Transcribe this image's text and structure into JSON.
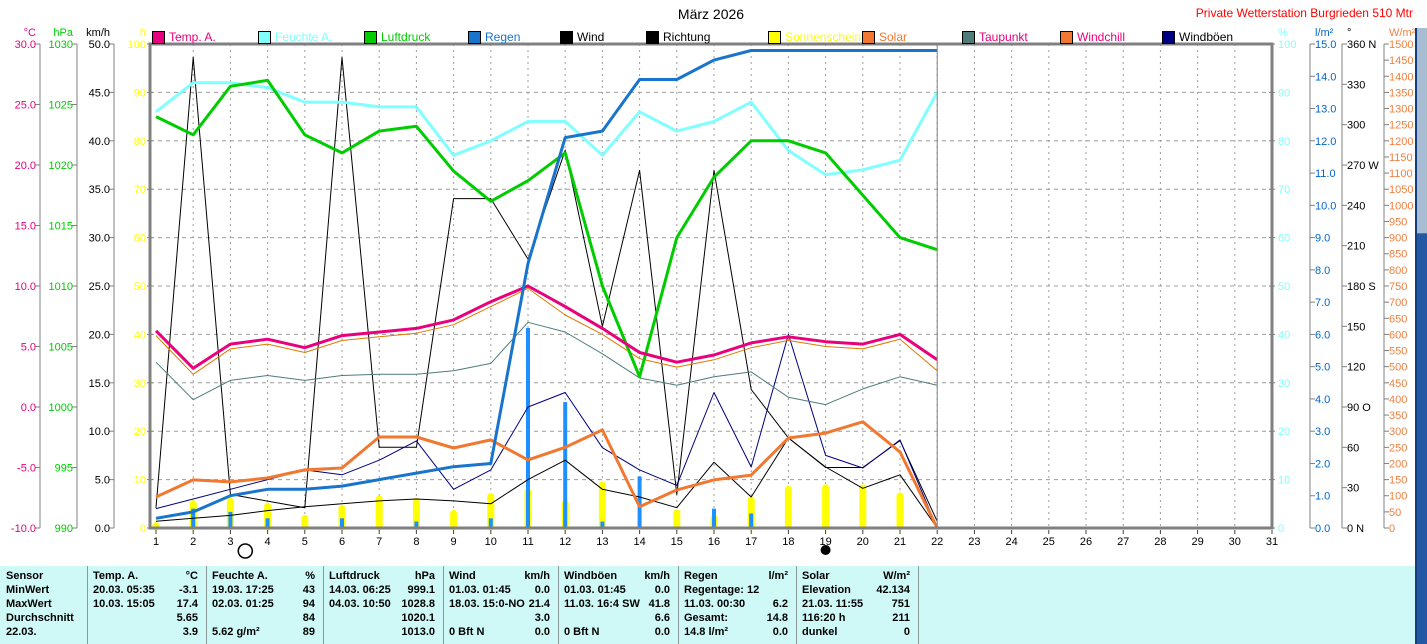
{
  "header": {
    "title": "März 2026",
    "station": "Private Wetterstation Burgrieden 510 Mtr"
  },
  "legend": [
    {
      "label": "Temp. A.",
      "box": "#E8007C",
      "text": "#E8007C"
    },
    {
      "label": "Feuchte A.",
      "box": "#80FFFF",
      "text": "#80FFFF"
    },
    {
      "label": "Luftdruck",
      "box": "#00CC00",
      "text": "#00CC00"
    },
    {
      "label": "Regen",
      "box": "#1874CD",
      "text": "#1874CD"
    },
    {
      "label": "Wind",
      "box": "#000000",
      "text": "#000000"
    },
    {
      "label": "Richtung",
      "box": "#000000",
      "text": "#000000"
    },
    {
      "label": "Sonnenschein",
      "box": "#FFFF00",
      "text": "#FFFF00"
    },
    {
      "label": "Solar",
      "box": "#F07830",
      "text": "#F07830"
    },
    {
      "label": "Taupunkt",
      "box": "#4D7C7A",
      "text": "#E8007C"
    },
    {
      "label": "Windchill",
      "box": "#F07830",
      "text": "#E8007C"
    },
    {
      "label": "Windböen",
      "box": "#000080",
      "text": "#000000"
    }
  ],
  "axes": {
    "left": [
      {
        "name": "temp",
        "header": "°C",
        "color": "#E8007C",
        "ticks": [
          "30.0",
          "25.0",
          "20.0",
          "15.0",
          "10.0",
          "5.0",
          "0.0",
          "-5.0",
          "-10.0"
        ]
      },
      {
        "name": "hpa",
        "header": "hPa",
        "color": "#00CC00",
        "ticks": [
          "1030",
          "1025",
          "1020",
          "1015",
          "1010",
          "1005",
          "1000",
          "995",
          "990"
        ]
      },
      {
        "name": "kmh",
        "header": "km/h",
        "color": "#000000",
        "ticks": [
          "50.0",
          "45.0",
          "40.0",
          "35.0",
          "30.0",
          "25.0",
          "20.0",
          "15.0",
          "10.0",
          "5.0",
          "0.0"
        ]
      },
      {
        "name": "h",
        "header": "h",
        "color": "#FFFF00",
        "ticks": [
          "100",
          "90",
          "80",
          "70",
          "60",
          "50",
          "40",
          "30",
          "20",
          "10",
          "0"
        ]
      }
    ],
    "right": [
      {
        "name": "pct",
        "header": "%",
        "color": "#80FFFF",
        "ticks": [
          "100",
          "90",
          "80",
          "70",
          "60",
          "50",
          "40",
          "30",
          "20",
          "10",
          "0"
        ]
      },
      {
        "name": "lm2",
        "header": "l/m²",
        "color": "#0066CC",
        "ticks": [
          "15.0",
          "14.0",
          "13.0",
          "12.0",
          "11.0",
          "10.0",
          "9.0",
          "8.0",
          "7.0",
          "6.0",
          "5.0",
          "4.0",
          "3.0",
          "2.0",
          "1.0",
          "0.0"
        ]
      },
      {
        "name": "deg",
        "header": "°",
        "color": "#000000",
        "ticks": [
          "360 N",
          "330",
          "300",
          "270 W",
          "240",
          "210",
          "180 S",
          "150",
          "120",
          "90 O",
          "60",
          "30",
          "0 N"
        ]
      },
      {
        "name": "wm2",
        "header": "W/m²",
        "color": "#F08040",
        "ticks": [
          "1500",
          "1450",
          "1400",
          "1350",
          "1300",
          "1250",
          "1200",
          "1150",
          "1100",
          "1050",
          "1000",
          "950",
          "900",
          "850",
          "800",
          "750",
          "700",
          "650",
          "600",
          "550",
          "500",
          "450",
          "400",
          "350",
          "300",
          "250",
          "200",
          "150",
          "100",
          "50",
          "0"
        ]
      }
    ]
  },
  "chart_data": {
    "type": "line",
    "title": "März 2026",
    "x_days": [
      1,
      2,
      3,
      4,
      5,
      6,
      7,
      8,
      9,
      10,
      11,
      12,
      13,
      14,
      15,
      16,
      17,
      18,
      19,
      20,
      21,
      22,
      23,
      24,
      25,
      26,
      27,
      28,
      29,
      30,
      31
    ],
    "data_end_day": 22,
    "axis_ranges": {
      "temp": {
        "min": -10,
        "max": 30
      },
      "hpa": {
        "min": 990,
        "max": 1030
      },
      "kmh": {
        "min": 0,
        "max": 50
      },
      "pct": {
        "min": 0,
        "max": 100
      },
      "lm2": {
        "min": 0,
        "max": 15
      },
      "deg": {
        "min": 0,
        "max": 360
      },
      "wm2": {
        "min": 0,
        "max": 1500
      }
    },
    "series": [
      {
        "name": "Temp. A.",
        "axis": "temp",
        "unit": "°C",
        "color": "#E8007C",
        "width": 3,
        "values": [
          6.3,
          3.2,
          5.2,
          5.6,
          4.9,
          5.9,
          6.2,
          6.5,
          7.2,
          8.7,
          10.0,
          8.3,
          6.5,
          4.5,
          3.7,
          4.3,
          5.3,
          5.8,
          5.4,
          5.2,
          6.0,
          3.9
        ]
      },
      {
        "name": "Feuchte A.",
        "axis": "pct",
        "unit": "%",
        "color": "#80FFFF",
        "width": 3,
        "values": [
          86,
          92,
          92,
          91,
          88,
          88,
          87,
          87,
          77,
          80,
          84,
          84,
          77,
          86,
          82,
          84,
          88,
          78,
          73,
          74,
          76,
          90
        ]
      },
      {
        "name": "Luftdruck",
        "axis": "hpa",
        "unit": "hPa",
        "color": "#00CC00",
        "width": 3,
        "values": [
          1024,
          1022.5,
          1026.5,
          1027,
          1022.5,
          1021,
          1022.8,
          1023.2,
          1019.5,
          1017,
          1018.7,
          1021,
          1010,
          1002.5,
          1014,
          1019,
          1022,
          1022,
          1021,
          1017.5,
          1014,
          1013
        ]
      },
      {
        "name": "Regen",
        "axis": "lm2",
        "unit": "l/m²",
        "color": "#1874CD",
        "width": 3,
        "values": [
          0.3,
          0.5,
          1.0,
          1.2,
          1.2,
          1.3,
          1.5,
          1.7,
          1.9,
          2.0,
          8.2,
          12.1,
          12.3,
          13.9,
          13.9,
          14.5,
          14.8,
          14.8,
          14.8,
          14.8,
          14.8,
          14.8
        ]
      },
      {
        "name": "Wind",
        "axis": "kmh",
        "unit": "km/h",
        "color": "#000000",
        "width": 1,
        "values": [
          0.7,
          1.0,
          1.3,
          1.8,
          2.2,
          2.5,
          2.8,
          3.0,
          2.8,
          2.5,
          5.0,
          7.0,
          4.0,
          3.2,
          2.1,
          6.8,
          3.2,
          9.3,
          6.3,
          4.1,
          5.5,
          0.0
        ]
      },
      {
        "name": "Richtung",
        "axis": "deg",
        "unit": "°",
        "color": "#000000",
        "width": 1,
        "values": [
          15,
          350,
          25,
          20,
          15,
          350,
          60,
          60,
          245,
          245,
          200,
          281,
          150,
          266,
          25,
          266,
          103,
          67,
          45,
          45,
          65,
          5
        ]
      },
      {
        "name": "Sonnenschein",
        "axis": "pct",
        "unit": "h",
        "color": "#FFFF00",
        "width": 7,
        "style": "bar",
        "values": [
          0.5,
          5,
          5.5,
          4.5,
          2,
          4,
          6,
          5.5,
          3,
          6.5,
          7.5,
          5,
          8.9,
          0,
          3.1,
          2,
          5.8,
          8,
          8.3,
          8.3,
          6.6,
          0
        ]
      },
      {
        "name": "Solar",
        "axis": "wm2",
        "unit": "W/m²",
        "color": "#F07830",
        "width": 3,
        "values": [
          96,
          149,
          143,
          155,
          180,
          186,
          282,
          282,
          248,
          273,
          211,
          250,
          304,
          66,
          118,
          149,
          164,
          279,
          294,
          329,
          236,
          0
        ]
      },
      {
        "name": "Taupunkt",
        "axis": "temp",
        "unit": "°C",
        "color": "#4D7C7A",
        "width": 1,
        "values": [
          3.7,
          0.6,
          2.2,
          2.6,
          2.2,
          2.6,
          2.7,
          2.7,
          3.0,
          3.6,
          7.0,
          6.2,
          4.4,
          2.4,
          1.8,
          2.5,
          2.9,
          0.8,
          0.2,
          1.5,
          2.5,
          1.8
        ]
      },
      {
        "name": "Windchill",
        "axis": "temp",
        "unit": "°C",
        "color": "#E07800",
        "width": 1,
        "values": [
          5.9,
          2.7,
          4.8,
          5.2,
          4.5,
          5.5,
          5.8,
          6.1,
          6.8,
          8.3,
          9.8,
          7.6,
          6.0,
          4.0,
          3.3,
          3.9,
          4.9,
          5.5,
          5.0,
          4.8,
          5.6,
          3.0
        ]
      },
      {
        "name": "Windböen",
        "axis": "kmh",
        "unit": "km/h",
        "color": "#000080",
        "width": 1,
        "values": [
          2,
          3,
          4,
          5,
          6,
          5.5,
          7,
          9,
          4,
          6,
          12.5,
          14,
          8.3,
          6,
          4.4,
          14,
          6.3,
          20,
          7.5,
          6.2,
          9.1,
          0
        ]
      },
      {
        "name": "Regen Tag",
        "axis": "lm2",
        "unit": "l/m²",
        "color": "#1E90FF",
        "width": 4,
        "style": "bar",
        "values": [
          0,
          0.6,
          0.5,
          0.3,
          0,
          0.3,
          0,
          0.2,
          0,
          0.3,
          6.2,
          3.9,
          0.2,
          1.6,
          0,
          0.6,
          0.45,
          0,
          0,
          0,
          0,
          0
        ]
      }
    ],
    "markers": {
      "full_moon_day": 3.4,
      "new_moon_day": 19
    }
  },
  "table": {
    "row_labels": [
      "Sensor",
      "MinWert",
      "MaxWert",
      "Durchschnitt",
      "22.03."
    ],
    "columns": [
      {
        "header": "Temp. A.",
        "unit": "°C",
        "min": [
          "20.03.  05:35",
          "-3.1"
        ],
        "max": [
          "10.03.  15:05",
          "17.4"
        ],
        "avg": [
          "",
          "5.65"
        ],
        "today": [
          "",
          "3.9"
        ]
      },
      {
        "header": "Feuchte A.",
        "unit": "%",
        "min": [
          "19.03.  17:25",
          "43"
        ],
        "max": [
          "02.03.  01:25",
          "94"
        ],
        "avg": [
          "",
          "84"
        ],
        "today": [
          "5.62 g/m²",
          "89"
        ]
      },
      {
        "header": "Luftdruck",
        "unit": "hPa",
        "min": [
          "14.03.  06:25",
          "999.1"
        ],
        "max": [
          "04.03.  10:50",
          "1028.8"
        ],
        "avg": [
          "",
          "1020.1"
        ],
        "today": [
          "",
          "1013.0"
        ]
      },
      {
        "header": "Wind",
        "unit": "km/h",
        "min": [
          "01.03.  01:45",
          "0.0"
        ],
        "max": [
          "18.03.  15:0-NO",
          "21.4"
        ],
        "avg": [
          "",
          "3.0"
        ],
        "today": [
          "0 Bft N",
          "0.0"
        ]
      },
      {
        "header": "Windböen",
        "unit": "km/h",
        "min": [
          "01.03.  01:45",
          "0.0"
        ],
        "max": [
          "11.03.  16:4 SW",
          "41.8"
        ],
        "avg": [
          "",
          "6.6"
        ],
        "today": [
          "0 Bft N",
          "0.0"
        ]
      },
      {
        "header": "Regen",
        "unit": "l/m²",
        "min": [
          "Regentage: 12",
          ""
        ],
        "max": [
          "11.03.  00:30",
          "6.2"
        ],
        "avg": [
          "Gesamt:",
          "14.8"
        ],
        "today": [
          "14.8 l/m²",
          "0.0"
        ]
      },
      {
        "header": "Solar",
        "unit": "W/m²",
        "min": [
          "Elevation",
          "42.134"
        ],
        "max": [
          "21.03.  11:55",
          "751"
        ],
        "avg": [
          "116:20 h",
          "211"
        ],
        "today": [
          "dunkel",
          "0"
        ]
      }
    ]
  },
  "scrollbar": {
    "track_color": "#2458A5",
    "thumb_color": "#A8BDD4"
  }
}
